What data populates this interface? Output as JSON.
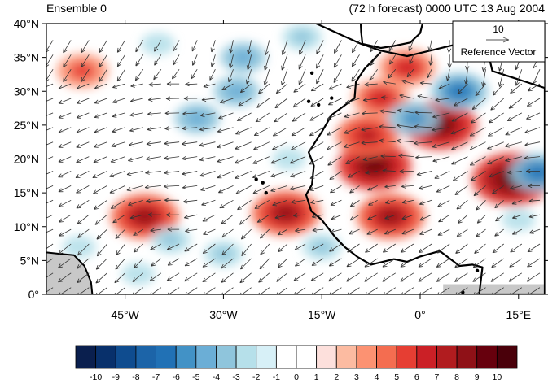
{
  "map": {
    "title_left": "Ensemble 0",
    "title_right": "(72 h forecast) 0000 UTC 13 Aug 2004",
    "lat_ticks": [
      {
        "value": 40,
        "label": "40°N"
      },
      {
        "value": 35,
        "label": "35°N"
      },
      {
        "value": 30,
        "label": "30°N"
      },
      {
        "value": 25,
        "label": "25°N"
      },
      {
        "value": 20,
        "label": "20°N"
      },
      {
        "value": 15,
        "label": "15°N"
      },
      {
        "value": 10,
        "label": "10°N"
      },
      {
        "value": 5,
        "label": "5°N"
      },
      {
        "value": 0,
        "label": "0°"
      }
    ],
    "lon_ticks": [
      {
        "value": -45,
        "label": "45°W"
      },
      {
        "value": -30,
        "label": "30°W"
      },
      {
        "value": -15,
        "label": "15°W"
      },
      {
        "value": 0,
        "label": "0°"
      },
      {
        "value": 15,
        "label": "15°E"
      }
    ],
    "extent": {
      "lon_min": -57,
      "lon_max": 19,
      "lat_min": 0,
      "lat_max": 40
    },
    "reference_vector": {
      "magnitude": "10",
      "label": "Reference Vector"
    },
    "land_color": "#c8c8c8",
    "anomaly_centers": [
      {
        "lon": -42,
        "lat": 11.5,
        "value": 8
      },
      {
        "lon": -20.5,
        "lat": 12,
        "value": 8
      },
      {
        "lon": -7,
        "lat": 19,
        "value": 9
      },
      {
        "lon": -4.5,
        "lat": 11.5,
        "value": 8
      },
      {
        "lon": -8,
        "lat": 23.5,
        "value": 7
      },
      {
        "lon": 3,
        "lat": 25,
        "value": 9
      },
      {
        "lon": 14,
        "lat": 17,
        "value": 10
      },
      {
        "lon": -6,
        "lat": 29,
        "value": 6
      },
      {
        "lon": -2,
        "lat": 33.5,
        "value": 6
      },
      {
        "lon": -51.5,
        "lat": 33,
        "value": 5
      },
      {
        "lon": 6,
        "lat": 30,
        "value": -6
      },
      {
        "lon": -1,
        "lat": 26,
        "value": -5
      },
      {
        "lon": 18,
        "lat": 18,
        "value": -6
      },
      {
        "lon": -28,
        "lat": 30,
        "value": -4
      },
      {
        "lon": -34,
        "lat": 26,
        "value": -4
      },
      {
        "lon": -27,
        "lat": 35,
        "value": -4
      },
      {
        "lon": -38,
        "lat": 8,
        "value": -3
      },
      {
        "lon": -30,
        "lat": 6,
        "value": -3
      },
      {
        "lon": -15,
        "lat": 7,
        "value": -3
      },
      {
        "lon": -52,
        "lat": 7,
        "value": -2
      },
      {
        "lon": -43,
        "lat": 3,
        "value": -2
      },
      {
        "lon": -20,
        "lat": 20,
        "value": -2
      },
      {
        "lon": -40,
        "lat": 37,
        "value": -2
      },
      {
        "lon": -18,
        "lat": 38,
        "value": -3
      },
      {
        "lon": 15,
        "lat": 11,
        "value": -2
      }
    ]
  },
  "colorbar": {
    "labels": [
      "-10",
      "-9",
      "-8",
      "-7",
      "-6",
      "-5",
      "-4",
      "-3",
      "-2",
      "-1",
      "0",
      "1",
      "2",
      "3",
      "4",
      "5",
      "6",
      "7",
      "8",
      "9",
      "10"
    ],
    "colors": [
      "#0a1f4e",
      "#08306b",
      "#0f4c8f",
      "#1c64a8",
      "#2171b5",
      "#4292c6",
      "#6baed6",
      "#8fc5dc",
      "#b6e0ea",
      "#d7f0f7",
      "#ffffff",
      "#ffffff",
      "#fde0dc",
      "#fcbba1",
      "#fc9272",
      "#f46d50",
      "#e63e33",
      "#cb2026",
      "#b11c1f",
      "#8f1117",
      "#67000d",
      "#4a000a"
    ]
  }
}
